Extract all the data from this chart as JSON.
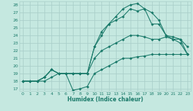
{
  "xlabel": "Humidex (Indice chaleur)",
  "bg_color": "#c5e8e0",
  "grid_color": "#aacfca",
  "line_color": "#1a7a6a",
  "xlim": [
    -0.5,
    23.5
  ],
  "ylim": [
    16.7,
    28.5
  ],
  "xticks": [
    0,
    1,
    2,
    3,
    4,
    5,
    6,
    7,
    8,
    9,
    10,
    11,
    12,
    13,
    14,
    15,
    16,
    17,
    18,
    19,
    20,
    21,
    22,
    23
  ],
  "yticks": [
    17,
    18,
    19,
    20,
    21,
    22,
    23,
    24,
    25,
    26,
    27,
    28
  ],
  "series": [
    {
      "x": [
        0,
        1,
        2,
        3,
        4,
        5,
        6,
        7,
        8,
        9,
        10,
        11,
        12,
        13,
        14,
        15,
        16,
        17,
        18,
        19,
        20,
        21,
        22,
        23
      ],
      "y": [
        18,
        18,
        18,
        18,
        18.5,
        19,
        19,
        16.8,
        17.0,
        17.3,
        19.0,
        19.5,
        20.0,
        20.5,
        21.0,
        21.0,
        21.2,
        21.3,
        21.5,
        21.5,
        21.5,
        21.5,
        21.5,
        21.5
      ]
    },
    {
      "x": [
        0,
        1,
        2,
        3,
        4,
        5,
        6,
        7,
        8,
        9,
        10,
        11,
        12,
        13,
        14,
        15,
        16,
        17,
        18,
        19,
        20,
        21,
        22,
        23
      ],
      "y": [
        18,
        18,
        18,
        18.5,
        19.5,
        19,
        19,
        19,
        19,
        19,
        21.0,
        22.0,
        22.5,
        23.0,
        23.5,
        24.0,
        24.0,
        23.8,
        23.5,
        23.5,
        23.8,
        23.5,
        23.0,
        21.5
      ]
    },
    {
      "x": [
        0,
        1,
        2,
        3,
        4,
        5,
        6,
        7,
        8,
        9,
        10,
        11,
        12,
        13,
        14,
        15,
        16,
        17,
        18,
        19,
        20,
        21,
        22,
        23
      ],
      "y": [
        18,
        18,
        18,
        18.5,
        19.5,
        19,
        19,
        19,
        19,
        19,
        22.5,
        24.5,
        25.5,
        26.0,
        26.5,
        27.5,
        27.2,
        27.5,
        25.5,
        25.5,
        24.0,
        23.5,
        23.5,
        22.5
      ]
    },
    {
      "x": [
        0,
        1,
        2,
        3,
        4,
        5,
        6,
        7,
        8,
        9,
        10,
        11,
        12,
        13,
        14,
        15,
        16,
        17,
        18,
        19,
        20,
        21,
        22,
        23
      ],
      "y": [
        18,
        18,
        18,
        18.5,
        19.5,
        19,
        19,
        19,
        19,
        19,
        22.5,
        24.0,
        25.5,
        26.5,
        27.5,
        28.0,
        28.2,
        27.5,
        27.0,
        26.0,
        24.0,
        23.8,
        23.5,
        21.5
      ]
    }
  ]
}
